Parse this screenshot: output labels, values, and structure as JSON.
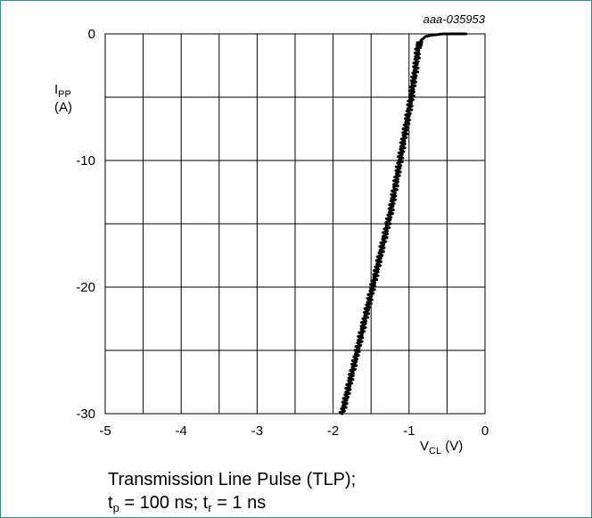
{
  "figure_id": "aaa-035953",
  "chart_data": {
    "type": "line",
    "xlabel": {
      "main": "V",
      "sub": "CL",
      "unit": "(V)"
    },
    "ylabel": {
      "main": "I",
      "sub": "PP",
      "unit": "(A)"
    },
    "xlim": [
      -5,
      0
    ],
    "ylim": [
      -30,
      0
    ],
    "x_ticks": [
      "-5",
      "-4",
      "-3",
      "-2",
      "-1",
      "0"
    ],
    "y_ticks": [
      "0",
      "-10",
      "-20",
      "-30"
    ],
    "grid": true,
    "series": [
      {
        "x": [
          -0.25,
          -0.4,
          -0.55,
          -0.7,
          -0.78,
          -0.84,
          -0.88,
          -0.9,
          -0.92,
          -0.95,
          -0.97,
          -1.0,
          -1.03,
          -1.06,
          -1.09,
          -1.12,
          -1.15,
          -1.18,
          -1.21,
          -1.24,
          -1.28,
          -1.32,
          -1.36,
          -1.4,
          -1.44,
          -1.48,
          -1.52,
          -1.56,
          -1.6,
          -1.64,
          -1.68,
          -1.72,
          -1.76,
          -1.8,
          -1.84,
          -1.88
        ],
        "y": [
          0,
          0,
          0,
          -0.1,
          -0.2,
          -0.5,
          -1.0,
          -2.0,
          -3.0,
          -4.0,
          -5.0,
          -6.0,
          -7.0,
          -8.0,
          -9.0,
          -10.0,
          -11.0,
          -12.0,
          -13.0,
          -14.0,
          -15.0,
          -16.0,
          -17.0,
          -18.0,
          -19.0,
          -20.0,
          -21.0,
          -22.0,
          -23.0,
          -24.0,
          -25.0,
          -26.0,
          -27.0,
          -28.0,
          -29.0,
          -30.0
        ]
      }
    ]
  },
  "caption": {
    "line1": "Transmission Line Pulse (TLP);",
    "line2": {
      "t1": "t",
      "t1_sub": "p",
      "t1_rest": " = 100 ns; ",
      "t2": "t",
      "t2_sub": "r",
      "t2_rest": " = 1 ns"
    }
  }
}
